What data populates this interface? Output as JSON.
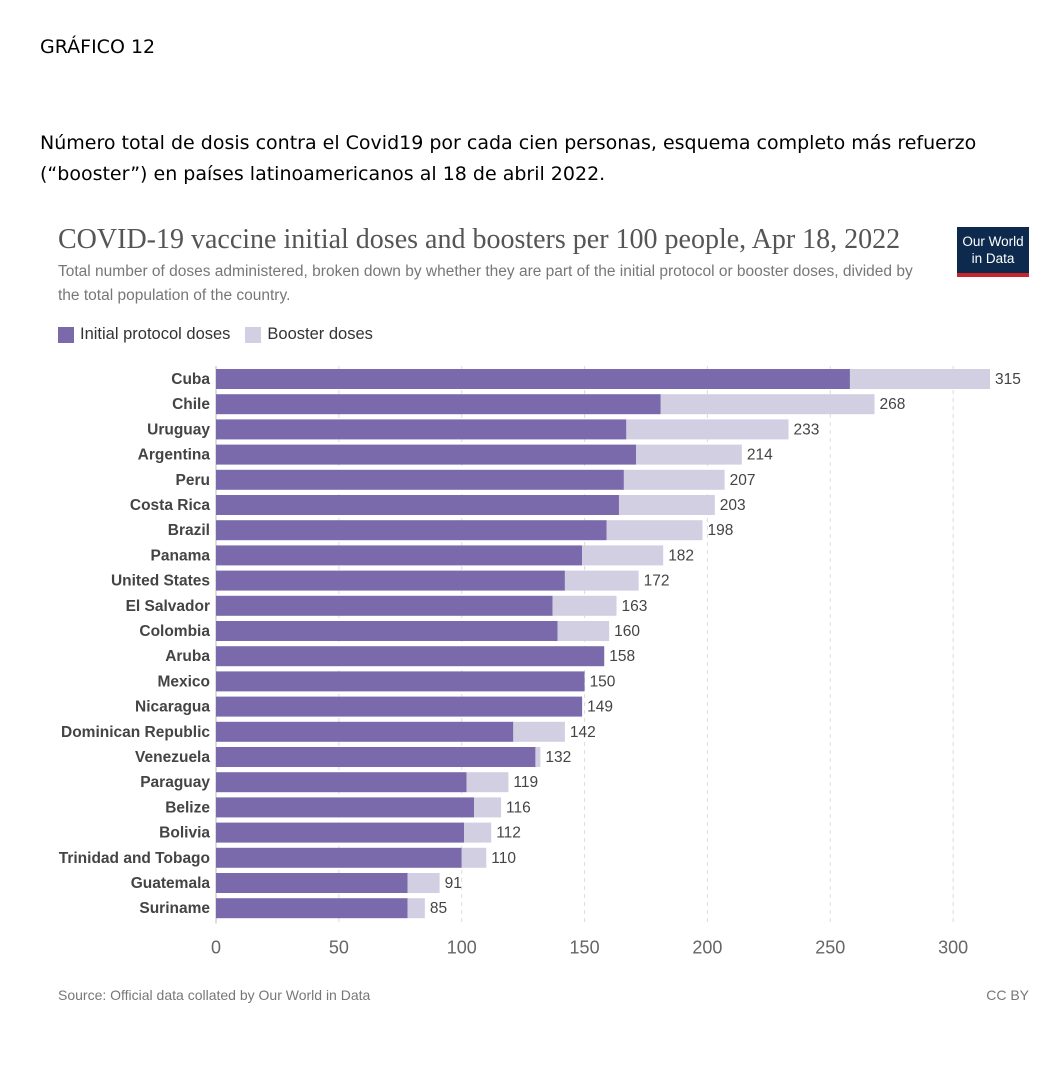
{
  "figure_label": "GRÁFICO 12",
  "figure_caption": "Número total de dosis contra el Covid19 por cada cien personas, esquema completo más refuerzo (“booster”) en países latinoamericanos al 18 de abril 2022.",
  "logo": {
    "line1": "Our World",
    "line2": "in Data"
  },
  "source": "Source: Official data collated by Our World in Data",
  "license": "CC BY",
  "colors": {
    "initial": "#7a6aac",
    "booster": "#d3cfe3",
    "grid": "#dddddd",
    "text": "#333333"
  },
  "chart_data": {
    "type": "bar",
    "orientation": "horizontal",
    "stacked": true,
    "title": "COVID-19 vaccine initial doses and boosters per 100 people, Apr 18, 2022",
    "subtitle": "Total number of doses administered, broken down by whether they are part of the initial protocol or booster doses, divided by the total population of the country.",
    "legend_placement": "top-left",
    "grid": true,
    "xlim": [
      0,
      315
    ],
    "xticks": [
      0,
      50,
      100,
      150,
      200,
      250,
      300
    ],
    "categories": [
      "Cuba",
      "Chile",
      "Uruguay",
      "Argentina",
      "Peru",
      "Costa Rica",
      "Brazil",
      "Panama",
      "United States",
      "El Salvador",
      "Colombia",
      "Aruba",
      "Mexico",
      "Nicaragua",
      "Dominican Republic",
      "Venezuela",
      "Paraguay",
      "Belize",
      "Bolivia",
      "Trinidad and Tobago",
      "Guatemala",
      "Suriname"
    ],
    "series": [
      {
        "name": "Initial protocol doses",
        "values": [
          258,
          181,
          167,
          171,
          166,
          164,
          159,
          149,
          142,
          137,
          139,
          158,
          150,
          149,
          121,
          130,
          102,
          105,
          101,
          100,
          78,
          78
        ]
      },
      {
        "name": "Booster doses",
        "values": [
          57,
          87,
          66,
          43,
          41,
          39,
          39,
          33,
          30,
          26,
          21,
          0,
          0,
          0,
          21,
          2,
          17,
          11,
          11,
          10,
          13,
          7
        ]
      }
    ],
    "totals": [
      315,
      268,
      233,
      214,
      207,
      203,
      198,
      182,
      172,
      163,
      160,
      158,
      150,
      149,
      142,
      132,
      119,
      116,
      112,
      110,
      91,
      85
    ]
  }
}
